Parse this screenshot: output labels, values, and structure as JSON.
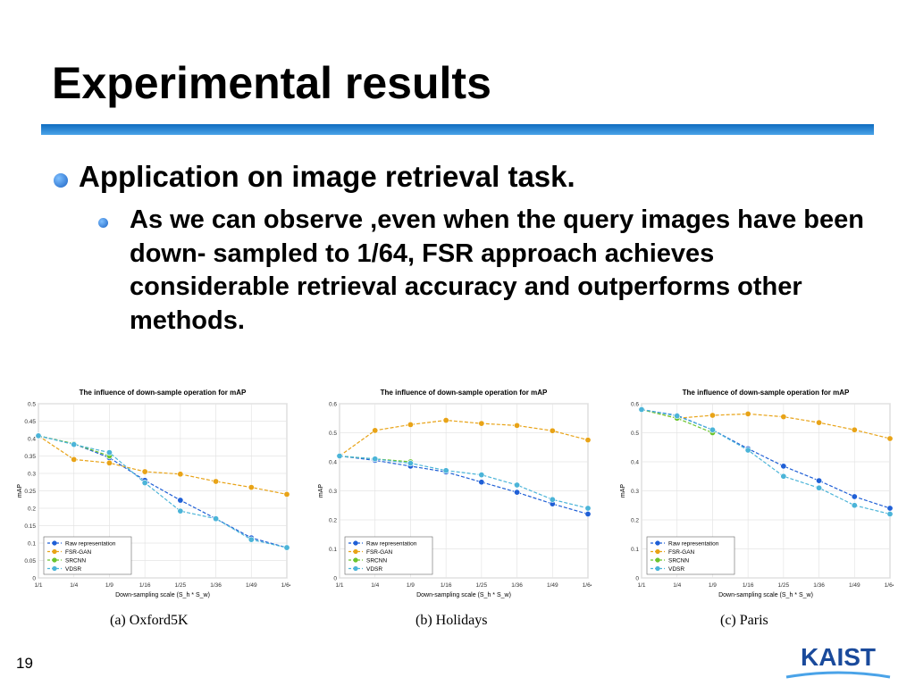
{
  "slide": {
    "title": "Experimental results",
    "bullet1": "Application on image retrieval task.",
    "bullet2": "As we can observe ,even when the query images have been down- sampled to 1/64, FSR approach achieves considerable retrieval accuracy and outperforms other methods.",
    "page_number": "19",
    "logo_text": "KAIST",
    "colors": {
      "rule": "#0e6cc0",
      "bullet": "#1b63c4",
      "logo": "#1a4a9b"
    }
  },
  "captions": [
    "(a)  Oxford5K",
    "(b)  Holidays",
    "(c)  Paris"
  ],
  "chart_data": [
    {
      "type": "line",
      "title": "The influence of down-sample operation for mAP",
      "xlabel": "Down-sampling scale (S_h * S_w)",
      "ylabel": "mAP",
      "categories": [
        "1/1",
        "1/4",
        "1/9",
        "1/16",
        "1/25",
        "1/36",
        "1/49",
        "1/64"
      ],
      "ylim": [
        0,
        0.5
      ],
      "yticks": [
        0,
        0.05,
        0.1,
        0.15,
        0.2,
        0.25,
        0.3,
        0.35,
        0.4,
        0.45,
        0.5
      ],
      "grid": true,
      "legend_position": "bottom-left",
      "series": [
        {
          "name": "Raw representation",
          "color": "#1f5fd6",
          "values": [
            0.408,
            0.385,
            0.345,
            0.28,
            0.223,
            0.17,
            0.115,
            0.087
          ]
        },
        {
          "name": "FSR-GAN",
          "color": "#e8a317",
          "values": [
            0.408,
            0.34,
            0.33,
            0.305,
            0.298,
            0.277,
            0.26,
            0.24
          ]
        },
        {
          "name": "SRCNN",
          "color": "#6bc42e",
          "values": [
            0.408,
            0.385,
            0.35,
            null,
            null,
            null,
            null,
            null
          ]
        },
        {
          "name": "VDSR",
          "color": "#4bb4d8",
          "values": [
            0.408,
            0.383,
            0.36,
            0.273,
            0.192,
            0.17,
            0.11,
            0.087
          ]
        }
      ]
    },
    {
      "type": "line",
      "title": "The influence of down-sample operation for mAP",
      "xlabel": "Down-sampling scale (S_h * S_w)",
      "ylabel": "mAP",
      "categories": [
        "1/1",
        "1/4",
        "1/9",
        "1/16",
        "1/25",
        "1/36",
        "1/49",
        "1/64"
      ],
      "ylim": [
        0,
        0.6
      ],
      "yticks": [
        0,
        0.1,
        0.2,
        0.3,
        0.4,
        0.5,
        0.6
      ],
      "grid": true,
      "legend_position": "bottom-left",
      "series": [
        {
          "name": "Raw representation",
          "color": "#1f5fd6",
          "values": [
            0.42,
            0.405,
            0.385,
            0.365,
            0.33,
            0.295,
            0.255,
            0.22
          ]
        },
        {
          "name": "FSR-GAN",
          "color": "#e8a317",
          "values": [
            0.42,
            0.508,
            0.528,
            0.543,
            0.532,
            0.525,
            0.507,
            0.475
          ]
        },
        {
          "name": "SRCNN",
          "color": "#6bc42e",
          "values": [
            0.42,
            0.41,
            0.4,
            null,
            null,
            null,
            null,
            null
          ]
        },
        {
          "name": "VDSR",
          "color": "#4bb4d8",
          "values": [
            0.42,
            0.41,
            0.395,
            0.37,
            0.355,
            0.32,
            0.27,
            0.24
          ]
        }
      ]
    },
    {
      "type": "line",
      "title": "The influence of down-sample operation for mAP",
      "xlabel": "Down-sampling scale (S_h * S_w)",
      "ylabel": "mAP",
      "categories": [
        "1/1",
        "1/4",
        "1/9",
        "1/16",
        "1/25",
        "1/36",
        "1/49",
        "1/64"
      ],
      "ylim": [
        0,
        0.6
      ],
      "yticks": [
        0,
        0.1,
        0.2,
        0.3,
        0.4,
        0.5,
        0.6
      ],
      "grid": true,
      "legend_position": "bottom-left",
      "series": [
        {
          "name": "Raw representation",
          "color": "#1f5fd6",
          "values": [
            0.58,
            0.56,
            0.51,
            0.445,
            0.385,
            0.335,
            0.28,
            0.24
          ]
        },
        {
          "name": "FSR-GAN",
          "color": "#e8a317",
          "values": [
            0.58,
            0.55,
            0.56,
            0.565,
            0.555,
            0.535,
            0.51,
            0.48
          ]
        },
        {
          "name": "SRCNN",
          "color": "#6bc42e",
          "values": [
            0.58,
            0.55,
            0.5,
            null,
            null,
            null,
            null,
            null
          ]
        },
        {
          "name": "VDSR",
          "color": "#4bb4d8",
          "values": [
            0.58,
            0.558,
            0.51,
            0.44,
            0.35,
            0.31,
            0.25,
            0.22
          ]
        }
      ]
    }
  ]
}
